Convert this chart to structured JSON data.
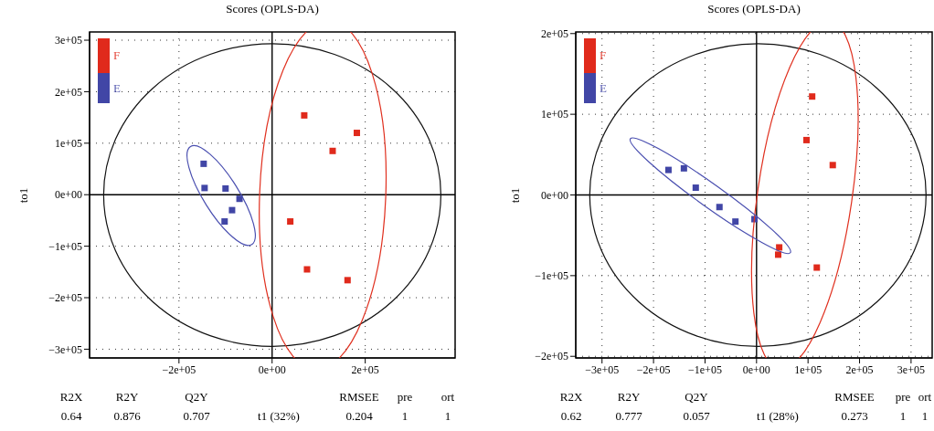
{
  "chart_data": [
    {
      "type": "scatter",
      "title": "Scores (OPLS-DA)",
      "xlabel": "t1 (32%)",
      "ylabel": "to1",
      "marker": "square",
      "grid": true,
      "legend": "top left",
      "xlim": [
        -392000,
        393000
      ],
      "ylim": [
        -317000,
        316000
      ],
      "xticks": [
        {
          "value": -200000,
          "label": "−2e+05"
        },
        {
          "value": 0,
          "label": "0e+00"
        },
        {
          "value": 200000,
          "label": "2e+05"
        }
      ],
      "yticks": [
        {
          "value": -300000,
          "label": "−3e+05"
        },
        {
          "value": -200000,
          "label": "−2e+05"
        },
        {
          "value": -100000,
          "label": "−1e+05"
        },
        {
          "value": 0,
          "label": "0e+00"
        },
        {
          "value": 100000,
          "label": "1e+05"
        },
        {
          "value": 200000,
          "label": "2e+05"
        },
        {
          "value": 300000,
          "label": "3e+05"
        }
      ],
      "annotations": [
        "R2X",
        "R2Y",
        "Q2Y",
        "RMSEE",
        "pre",
        "ort",
        "0.64",
        "0.876",
        "0.707",
        "0.204",
        "1",
        "1"
      ],
      "series": [
        {
          "name": "F",
          "color": "#e02a1c",
          "x": [
            69000,
            182000,
            130000,
            39000,
            75000,
            162000
          ],
          "values": [
            154000,
            120000,
            85000,
            -52000,
            -145000,
            -166000
          ]
        },
        {
          "name": "E",
          "color": "#4146a6",
          "x": [
            -147000,
            -145000,
            -100000,
            -70000,
            -86000,
            -102000
          ],
          "values": [
            60000,
            13000,
            12000,
            -8000,
            -30000,
            -52000
          ]
        }
      ]
    },
    {
      "type": "scatter",
      "title": "Scores (OPLS-DA)",
      "xlabel": "t1 (28%)",
      "ylabel": "to1",
      "marker": "square",
      "grid": true,
      "legend": "top left",
      "xlim": [
        -351000,
        341000
      ],
      "ylim": [
        -202000,
        202000
      ],
      "xticks": [
        {
          "value": -300000,
          "label": "−3e+05"
        },
        {
          "value": -200000,
          "label": "−2e+05"
        },
        {
          "value": -100000,
          "label": "−1e+05"
        },
        {
          "value": 0,
          "label": "0e+00"
        },
        {
          "value": 100000,
          "label": "1e+05"
        },
        {
          "value": 200000,
          "label": "2e+05"
        },
        {
          "value": 300000,
          "label": "3e+05"
        }
      ],
      "yticks": [
        {
          "value": -200000,
          "label": "−2e+05"
        },
        {
          "value": -100000,
          "label": "−1e+05"
        },
        {
          "value": 0,
          "label": "0e+00"
        },
        {
          "value": 100000,
          "label": "1e+05"
        },
        {
          "value": 200000,
          "label": "2e+05"
        }
      ],
      "annotations": [
        "R2X",
        "R2Y",
        "Q2Y",
        "RMSEE",
        "pre",
        "ort",
        "0.62",
        "0.777",
        "0.057",
        "0.273",
        "1",
        "1"
      ],
      "series": [
        {
          "name": "F",
          "color": "#e02a1c",
          "x": [
            108000,
            97000,
            148000,
            44000,
            42000,
            117000
          ],
          "values": [
            122000,
            68000,
            37000,
            -65000,
            -74000,
            -90000
          ]
        },
        {
          "name": "E",
          "color": "#4146a6",
          "x": [
            -171000,
            -141000,
            -118000,
            -72000,
            -41000,
            -4000
          ],
          "values": [
            31000,
            33000,
            9000,
            -15000,
            -33000,
            -30000
          ]
        }
      ]
    }
  ]
}
